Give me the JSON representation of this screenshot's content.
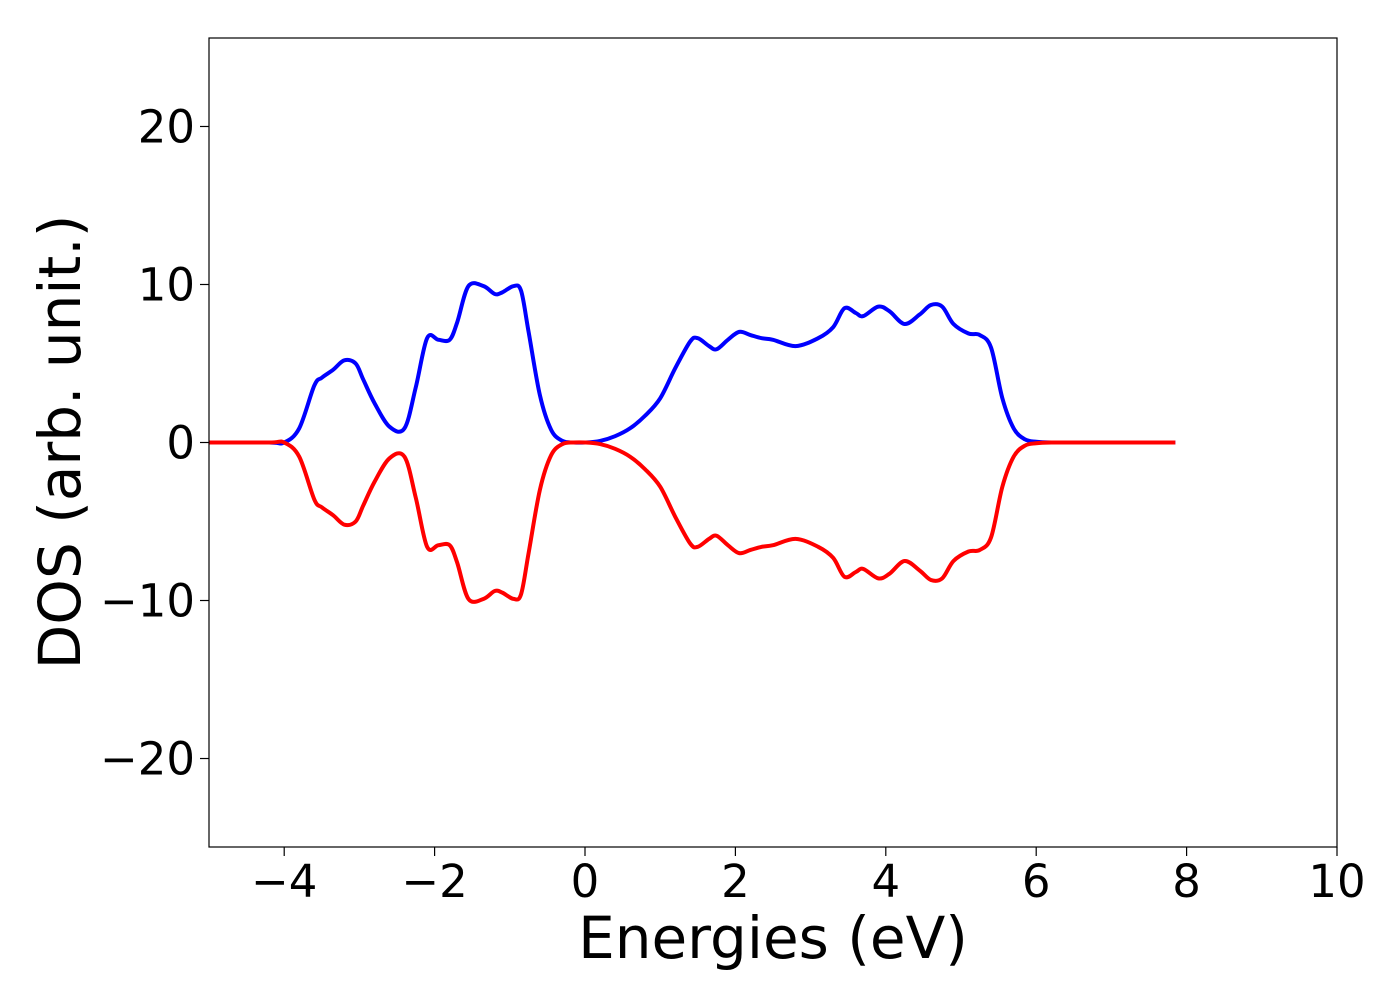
{
  "chart_data": {
    "type": "line",
    "title": "",
    "xlabel": "Energies (eV)",
    "ylabel": "DOS (arb. unit.)",
    "xlim": [
      -5,
      10
    ],
    "ylim": [
      -25.6,
      25.6
    ],
    "xticks": [
      -4,
      -2,
      0,
      2,
      4,
      6,
      8,
      10
    ],
    "xtick_labels": [
      "−4",
      "−2",
      "0",
      "2",
      "4",
      "6",
      "8",
      "10"
    ],
    "yticks": [
      -20,
      -10,
      0,
      10,
      20
    ],
    "ytick_labels": [
      "−20",
      "−10",
      "0",
      "10",
      "20"
    ],
    "grid": false,
    "legend": "none",
    "series": [
      {
        "color": "#0000ff",
        "x": [
          -5.0,
          -4.2,
          -4.0,
          -3.8,
          -3.6,
          -3.5,
          -3.35,
          -3.2,
          -3.05,
          -2.95,
          -2.8,
          -2.6,
          -2.4,
          -2.25,
          -2.1,
          -1.95,
          -1.8,
          -1.7,
          -1.55,
          -1.35,
          -1.2,
          -1.1,
          -0.95,
          -0.85,
          -0.75,
          -0.6,
          -0.45,
          -0.3,
          -0.15,
          0.0,
          0.2,
          0.4,
          0.6,
          0.8,
          1.0,
          1.2,
          1.4,
          1.5,
          1.65,
          1.75,
          1.9,
          2.05,
          2.2,
          2.35,
          2.5,
          2.8,
          3.1,
          3.3,
          3.45,
          3.6,
          3.7,
          3.9,
          4.05,
          4.25,
          4.45,
          4.6,
          4.75,
          4.9,
          5.1,
          5.25,
          5.4,
          5.55,
          5.7,
          5.85,
          6.0,
          6.2,
          6.5,
          7.0,
          7.5,
          7.85
        ],
        "y": [
          0.0,
          0.0,
          0.0,
          0.9,
          3.6,
          4.1,
          4.6,
          5.2,
          5.0,
          4.0,
          2.5,
          1.0,
          0.9,
          3.5,
          6.6,
          6.5,
          6.5,
          7.6,
          9.9,
          9.9,
          9.4,
          9.5,
          9.9,
          9.6,
          7.0,
          3.0,
          0.8,
          0.1,
          0.0,
          0.0,
          0.1,
          0.4,
          0.9,
          1.7,
          2.8,
          4.7,
          6.4,
          6.6,
          6.1,
          5.9,
          6.5,
          7.0,
          6.8,
          6.6,
          6.5,
          6.1,
          6.6,
          7.3,
          8.5,
          8.2,
          8.0,
          8.6,
          8.3,
          7.5,
          8.1,
          8.7,
          8.6,
          7.5,
          6.9,
          6.8,
          6.0,
          2.8,
          0.9,
          0.2,
          0.05,
          0.0,
          0.0,
          0.0,
          0.0,
          0.0
        ]
      },
      {
        "color": "#ff0000",
        "x": [
          -5.0,
          -4.2,
          -4.0,
          -3.8,
          -3.6,
          -3.5,
          -3.35,
          -3.2,
          -3.05,
          -2.95,
          -2.8,
          -2.6,
          -2.4,
          -2.25,
          -2.1,
          -1.95,
          -1.8,
          -1.7,
          -1.55,
          -1.35,
          -1.2,
          -1.1,
          -0.95,
          -0.85,
          -0.75,
          -0.6,
          -0.45,
          -0.3,
          -0.15,
          0.0,
          0.2,
          0.4,
          0.6,
          0.8,
          1.0,
          1.2,
          1.4,
          1.5,
          1.65,
          1.75,
          1.9,
          2.05,
          2.2,
          2.35,
          2.5,
          2.8,
          3.1,
          3.3,
          3.45,
          3.6,
          3.7,
          3.9,
          4.05,
          4.25,
          4.45,
          4.6,
          4.75,
          4.9,
          5.1,
          5.25,
          5.4,
          5.55,
          5.7,
          5.85,
          6.0,
          6.2,
          6.5,
          7.0,
          7.5,
          7.85
        ],
        "y": [
          0.0,
          0.0,
          0.0,
          -0.9,
          -3.6,
          -4.1,
          -4.6,
          -5.2,
          -5.0,
          -4.0,
          -2.5,
          -1.0,
          -0.9,
          -3.5,
          -6.6,
          -6.5,
          -6.5,
          -7.6,
          -9.9,
          -9.9,
          -9.4,
          -9.5,
          -9.9,
          -9.6,
          -7.0,
          -3.0,
          -0.8,
          -0.1,
          0.0,
          0.0,
          -0.1,
          -0.4,
          -0.9,
          -1.7,
          -2.8,
          -4.7,
          -6.4,
          -6.6,
          -6.1,
          -5.9,
          -6.5,
          -7.0,
          -6.8,
          -6.6,
          -6.5,
          -6.1,
          -6.6,
          -7.3,
          -8.5,
          -8.2,
          -8.0,
          -8.6,
          -8.3,
          -7.5,
          -8.1,
          -8.7,
          -8.6,
          -7.5,
          -6.9,
          -6.8,
          -6.0,
          -2.8,
          -0.9,
          -0.2,
          -0.05,
          0.0,
          0.0,
          0.0,
          0.0,
          0.0
        ]
      }
    ]
  }
}
